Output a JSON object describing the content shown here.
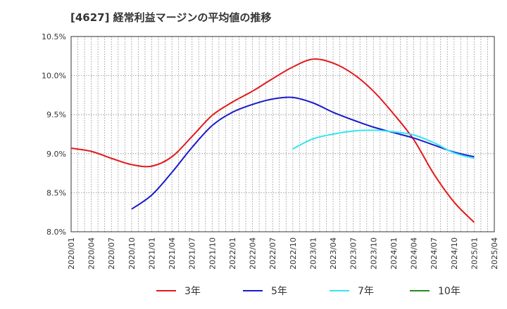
{
  "chart_data": {
    "type": "line",
    "title": "[4627]  経常利益マージンの平均値の推移",
    "xlabel": "",
    "ylabel": "",
    "x_ticks": [
      "2020/01",
      "2020/04",
      "2020/07",
      "2020/10",
      "2021/01",
      "2021/04",
      "2021/07",
      "2021/10",
      "2022/01",
      "2022/04",
      "2022/07",
      "2022/10",
      "2023/01",
      "2023/04",
      "2023/07",
      "2023/10",
      "2024/01",
      "2024/04",
      "2024/07",
      "2024/10",
      "2025/01",
      "2025/04"
    ],
    "y_ticks": [
      "8.0%",
      "8.5%",
      "9.0%",
      "9.5%",
      "10.0%",
      "10.5%"
    ],
    "ylim": [
      8.0,
      10.5
    ],
    "grid": true,
    "legend_position": "bottom",
    "series": [
      {
        "name": "3年",
        "color": "#e31a1c",
        "x": [
          "2020/01",
          "2020/04",
          "2020/07",
          "2020/10",
          "2021/01",
          "2021/04",
          "2021/07",
          "2021/10",
          "2022/01",
          "2022/04",
          "2022/07",
          "2022/10",
          "2023/01",
          "2023/04",
          "2023/07",
          "2023/10",
          "2024/01",
          "2024/04",
          "2024/07",
          "2024/10",
          "2025/01"
        ],
        "values": [
          9.07,
          9.03,
          8.94,
          8.86,
          8.84,
          8.96,
          9.22,
          9.49,
          9.66,
          9.8,
          9.96,
          10.11,
          10.21,
          10.16,
          10.02,
          9.8,
          9.51,
          9.18,
          8.74,
          8.38,
          8.12
        ]
      },
      {
        "name": "5年",
        "color": "#1a1acc",
        "x": [
          "2020/10",
          "2021/01",
          "2021/04",
          "2021/07",
          "2021/10",
          "2022/01",
          "2022/04",
          "2022/07",
          "2022/10",
          "2023/01",
          "2023/04",
          "2023/07",
          "2023/10",
          "2024/01",
          "2024/04",
          "2024/07",
          "2024/10",
          "2025/01"
        ],
        "values": [
          8.29,
          8.47,
          8.76,
          9.08,
          9.36,
          9.53,
          9.63,
          9.7,
          9.72,
          9.65,
          9.53,
          9.43,
          9.34,
          9.27,
          9.2,
          9.11,
          9.02,
          8.96
        ]
      },
      {
        "name": "7年",
        "color": "#33e6f0",
        "x": [
          "2022/10",
          "2023/01",
          "2023/04",
          "2023/07",
          "2023/10",
          "2024/01",
          "2024/04",
          "2024/07",
          "2024/10",
          "2025/01"
        ],
        "values": [
          9.06,
          9.19,
          9.25,
          9.29,
          9.3,
          9.28,
          9.24,
          9.14,
          9.01,
          8.94
        ]
      },
      {
        "name": "10年",
        "color": "#228b22",
        "x": [],
        "values": []
      }
    ]
  }
}
